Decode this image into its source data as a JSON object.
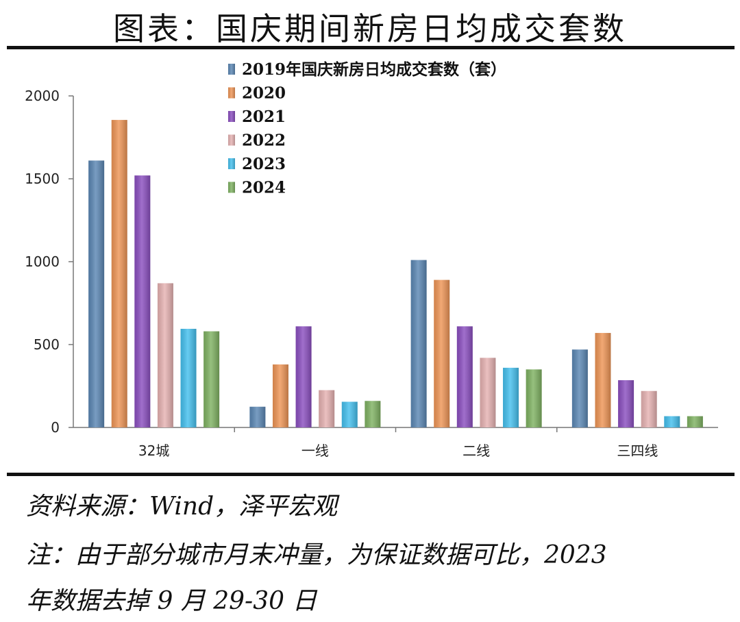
{
  "title": "图表：国庆期间新房日均成交套数",
  "source": "资料来源：Wind，泽平宏观",
  "note_line1": "注：由于部分城市月末冲量，为保证数据可比，2023",
  "note_line2": "年数据去掉 9 月 29-30 日",
  "chart_data": {
    "type": "bar",
    "categories": [
      "32城",
      "一线",
      "二线",
      "三四线"
    ],
    "series": [
      {
        "name": "2019年国庆新房日均成交套数（套）",
        "color": "#5b87b4",
        "values": [
          1610,
          125,
          1010,
          470
        ]
      },
      {
        "name": "2020",
        "color": "#ee9556",
        "values": [
          1855,
          380,
          890,
          570
        ]
      },
      {
        "name": "2021",
        "color": "#8b4fc0",
        "values": [
          1520,
          610,
          610,
          285
        ]
      },
      {
        "name": "2022",
        "color": "#e6b2b2",
        "values": [
          870,
          225,
          420,
          220
        ]
      },
      {
        "name": "2023",
        "color": "#45c0ee",
        "values": [
          595,
          155,
          360,
          68
        ]
      },
      {
        "name": "2024",
        "color": "#7fb262",
        "values": [
          580,
          160,
          350,
          68
        ]
      }
    ],
    "yticks": [
      "0",
      "500",
      "1000",
      "1500",
      "2000"
    ],
    "ylim": [
      0,
      2000
    ],
    "grid": false,
    "legend": "top-center"
  }
}
